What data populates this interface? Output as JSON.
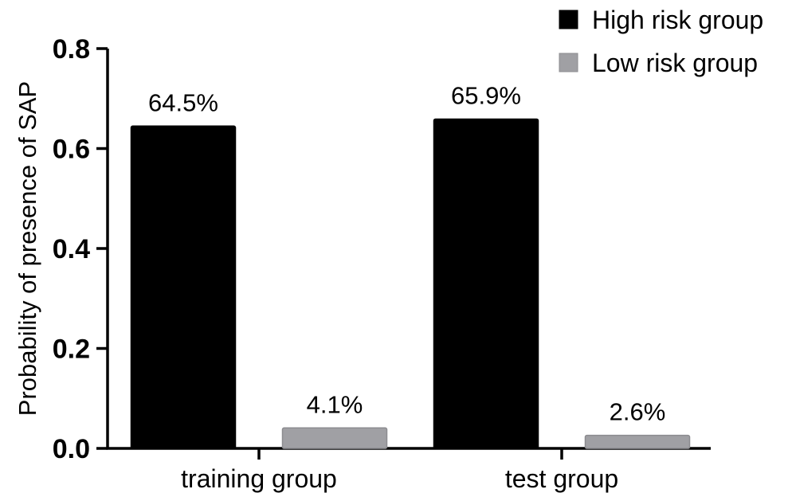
{
  "chart_data": {
    "type": "bar",
    "title": "",
    "xlabel": "",
    "ylabel": "Probability of presence of SAP",
    "ylim": [
      0,
      0.8
    ],
    "yticks": [
      0.0,
      0.2,
      0.4,
      0.6,
      0.8
    ],
    "ytick_labels": [
      "0.0",
      "0.2",
      "0.4",
      "0.6",
      "0.8"
    ],
    "categories": [
      "training group",
      "test group"
    ],
    "series": [
      {
        "name": "High risk group",
        "color": "#000000",
        "values": [
          0.645,
          0.659
        ],
        "labels": [
          "64.5%",
          "65.9%"
        ]
      },
      {
        "name": "Low risk group",
        "color": "#a0a0a4",
        "values": [
          0.041,
          0.026
        ],
        "labels": [
          "4.1%",
          "2.6%"
        ]
      }
    ],
    "grid": false,
    "legend_position": "top-right"
  }
}
